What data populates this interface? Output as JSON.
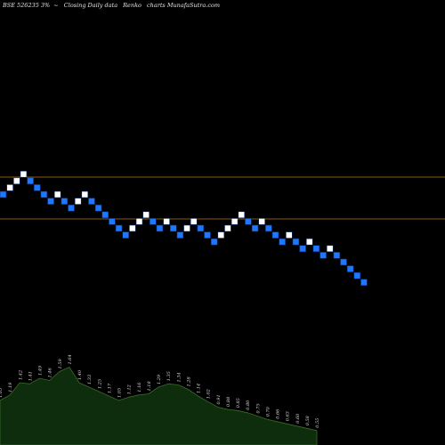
{
  "header": {
    "symbol": "BSE 526235 3%",
    "dash": "~",
    "desc": "Closing Daily data",
    "type": "Renko",
    "site": "charts MunafaSutra.com"
  },
  "colors": {
    "background": "#000000",
    "up_brick": "#ffffff",
    "down_brick": "#1e78ff",
    "brick_border": "#0a2a66",
    "ref_line": "#8a5a12",
    "volume_fill": "#0d2d0d",
    "volume_line": "#3a6a2a",
    "label": "#dddddd"
  },
  "chart_data": {
    "type": "renko",
    "reference_levels": [
      1.0,
      0.55
    ],
    "bricks": [
      {
        "level": 0,
        "dir": "down"
      },
      {
        "level": 1,
        "dir": "up"
      },
      {
        "level": 2,
        "dir": "up"
      },
      {
        "level": 3,
        "dir": "up"
      },
      {
        "level": 2,
        "dir": "down"
      },
      {
        "level": 1,
        "dir": "down"
      },
      {
        "level": 0,
        "dir": "down"
      },
      {
        "level": -1,
        "dir": "down"
      },
      {
        "level": 0,
        "dir": "up"
      },
      {
        "level": -1,
        "dir": "down"
      },
      {
        "level": -2,
        "dir": "down"
      },
      {
        "level": -1,
        "dir": "up"
      },
      {
        "level": 0,
        "dir": "up"
      },
      {
        "level": -1,
        "dir": "down"
      },
      {
        "level": -2,
        "dir": "down"
      },
      {
        "level": -3,
        "dir": "down"
      },
      {
        "level": -4,
        "dir": "down"
      },
      {
        "level": -5,
        "dir": "down"
      },
      {
        "level": -6,
        "dir": "down"
      },
      {
        "level": -5,
        "dir": "up"
      },
      {
        "level": -4,
        "dir": "up"
      },
      {
        "level": -3,
        "dir": "up"
      },
      {
        "level": -4,
        "dir": "down"
      },
      {
        "level": -5,
        "dir": "down"
      },
      {
        "level": -4,
        "dir": "up"
      },
      {
        "level": -5,
        "dir": "down"
      },
      {
        "level": -6,
        "dir": "down"
      },
      {
        "level": -5,
        "dir": "up"
      },
      {
        "level": -4,
        "dir": "up"
      },
      {
        "level": -5,
        "dir": "down"
      },
      {
        "level": -6,
        "dir": "down"
      },
      {
        "level": -7,
        "dir": "down"
      },
      {
        "level": -6,
        "dir": "up"
      },
      {
        "level": -5,
        "dir": "up"
      },
      {
        "level": -4,
        "dir": "up"
      },
      {
        "level": -3,
        "dir": "up"
      },
      {
        "level": -4,
        "dir": "down"
      },
      {
        "level": -5,
        "dir": "down"
      },
      {
        "level": -4,
        "dir": "up"
      },
      {
        "level": -5,
        "dir": "down"
      },
      {
        "level": -6,
        "dir": "down"
      },
      {
        "level": -7,
        "dir": "down"
      },
      {
        "level": -6,
        "dir": "up"
      },
      {
        "level": -7,
        "dir": "down"
      },
      {
        "level": -8,
        "dir": "down"
      },
      {
        "level": -7,
        "dir": "up"
      },
      {
        "level": -8,
        "dir": "down"
      },
      {
        "level": -9,
        "dir": "down"
      },
      {
        "level": -8,
        "dir": "up"
      },
      {
        "level": -9,
        "dir": "down"
      },
      {
        "level": -10,
        "dir": "down"
      },
      {
        "level": -11,
        "dir": "down"
      },
      {
        "level": -12,
        "dir": "down"
      },
      {
        "level": -13,
        "dir": "down"
      }
    ],
    "volume_labels": [
      "1.05",
      "1.19",
      "1.42",
      "1.41",
      "1.49",
      "1.46",
      "1.59",
      "1.64",
      "1.40",
      "1.33",
      "1.25",
      "1.17",
      "1.05",
      "1.12",
      "1.16",
      "1.18",
      "1.29",
      "1.35",
      "1.34",
      "1.28",
      "1.14",
      "1.02",
      "0.91",
      "0.88",
      "0.85",
      "0.80",
      "0.75",
      "0.70",
      "0.66",
      "0.63",
      "0.60",
      "0.58",
      "0.55"
    ],
    "volume_values": [
      40,
      45,
      56,
      55,
      60,
      58,
      66,
      70,
      56,
      52,
      48,
      44,
      40,
      43,
      45,
      46,
      52,
      55,
      54,
      50,
      44,
      39,
      34,
      32,
      31,
      29,
      26,
      23,
      21,
      19,
      17,
      15,
      13
    ]
  }
}
